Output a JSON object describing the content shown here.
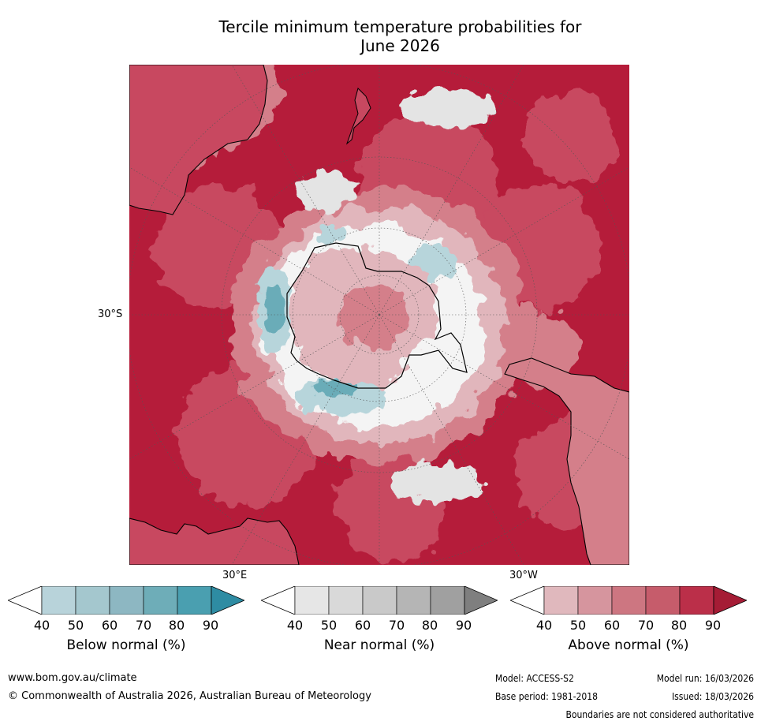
{
  "title_line1": "Tercile minimum temperature probabilities for",
  "title_line2": "June 2026",
  "map": {
    "lat_label": "30°S",
    "lon_label_e": "30°E",
    "lon_label_w": "30°W",
    "colors": {
      "ocean_high": "#b51c3a",
      "mid": "#c84860",
      "low": "#d47f8a",
      "pale": "#e1b6bc",
      "near": "#e4e4e4",
      "below": "#6aacb8",
      "below_light": "#b7d5db"
    }
  },
  "colorbars": [
    {
      "name": "below",
      "title": "Below normal (%)",
      "ticks": [
        "40",
        "50",
        "60",
        "70",
        "80",
        "90"
      ],
      "colors": [
        "#ffffff",
        "#b8d3da",
        "#a4c7ce",
        "#8db7c2",
        "#6eadb8",
        "#4a9fb0",
        "#2e8ca3"
      ]
    },
    {
      "name": "near",
      "title": "Near normal (%)",
      "ticks": [
        "40",
        "50",
        "60",
        "70",
        "80",
        "90"
      ],
      "colors": [
        "#ffffff",
        "#e6e6e6",
        "#d9d9d9",
        "#c9c9c9",
        "#b5b5b5",
        "#a0a0a0",
        "#7f7f7f"
      ]
    },
    {
      "name": "above",
      "title": "Above normal (%)",
      "ticks": [
        "40",
        "50",
        "60",
        "70",
        "80",
        "90"
      ],
      "colors": [
        "#ffffff",
        "#e0b8bd",
        "#d6959e",
        "#cd7681",
        "#c65c6b",
        "#bb2f49",
        "#a51c35"
      ]
    }
  ],
  "footer": {
    "website": "www.bom.gov.au/climate",
    "copyright": "© Commonwealth of Australia 2026, Australian Bureau of Meteorology",
    "model": "Model: ACCESS-S2",
    "base_period": "Base period: 1981-2018",
    "model_run": "Model run: 16/03/2026",
    "issued": "Issued: 18/03/2026",
    "disclaimer": "Boundaries are not considered authoritative"
  }
}
